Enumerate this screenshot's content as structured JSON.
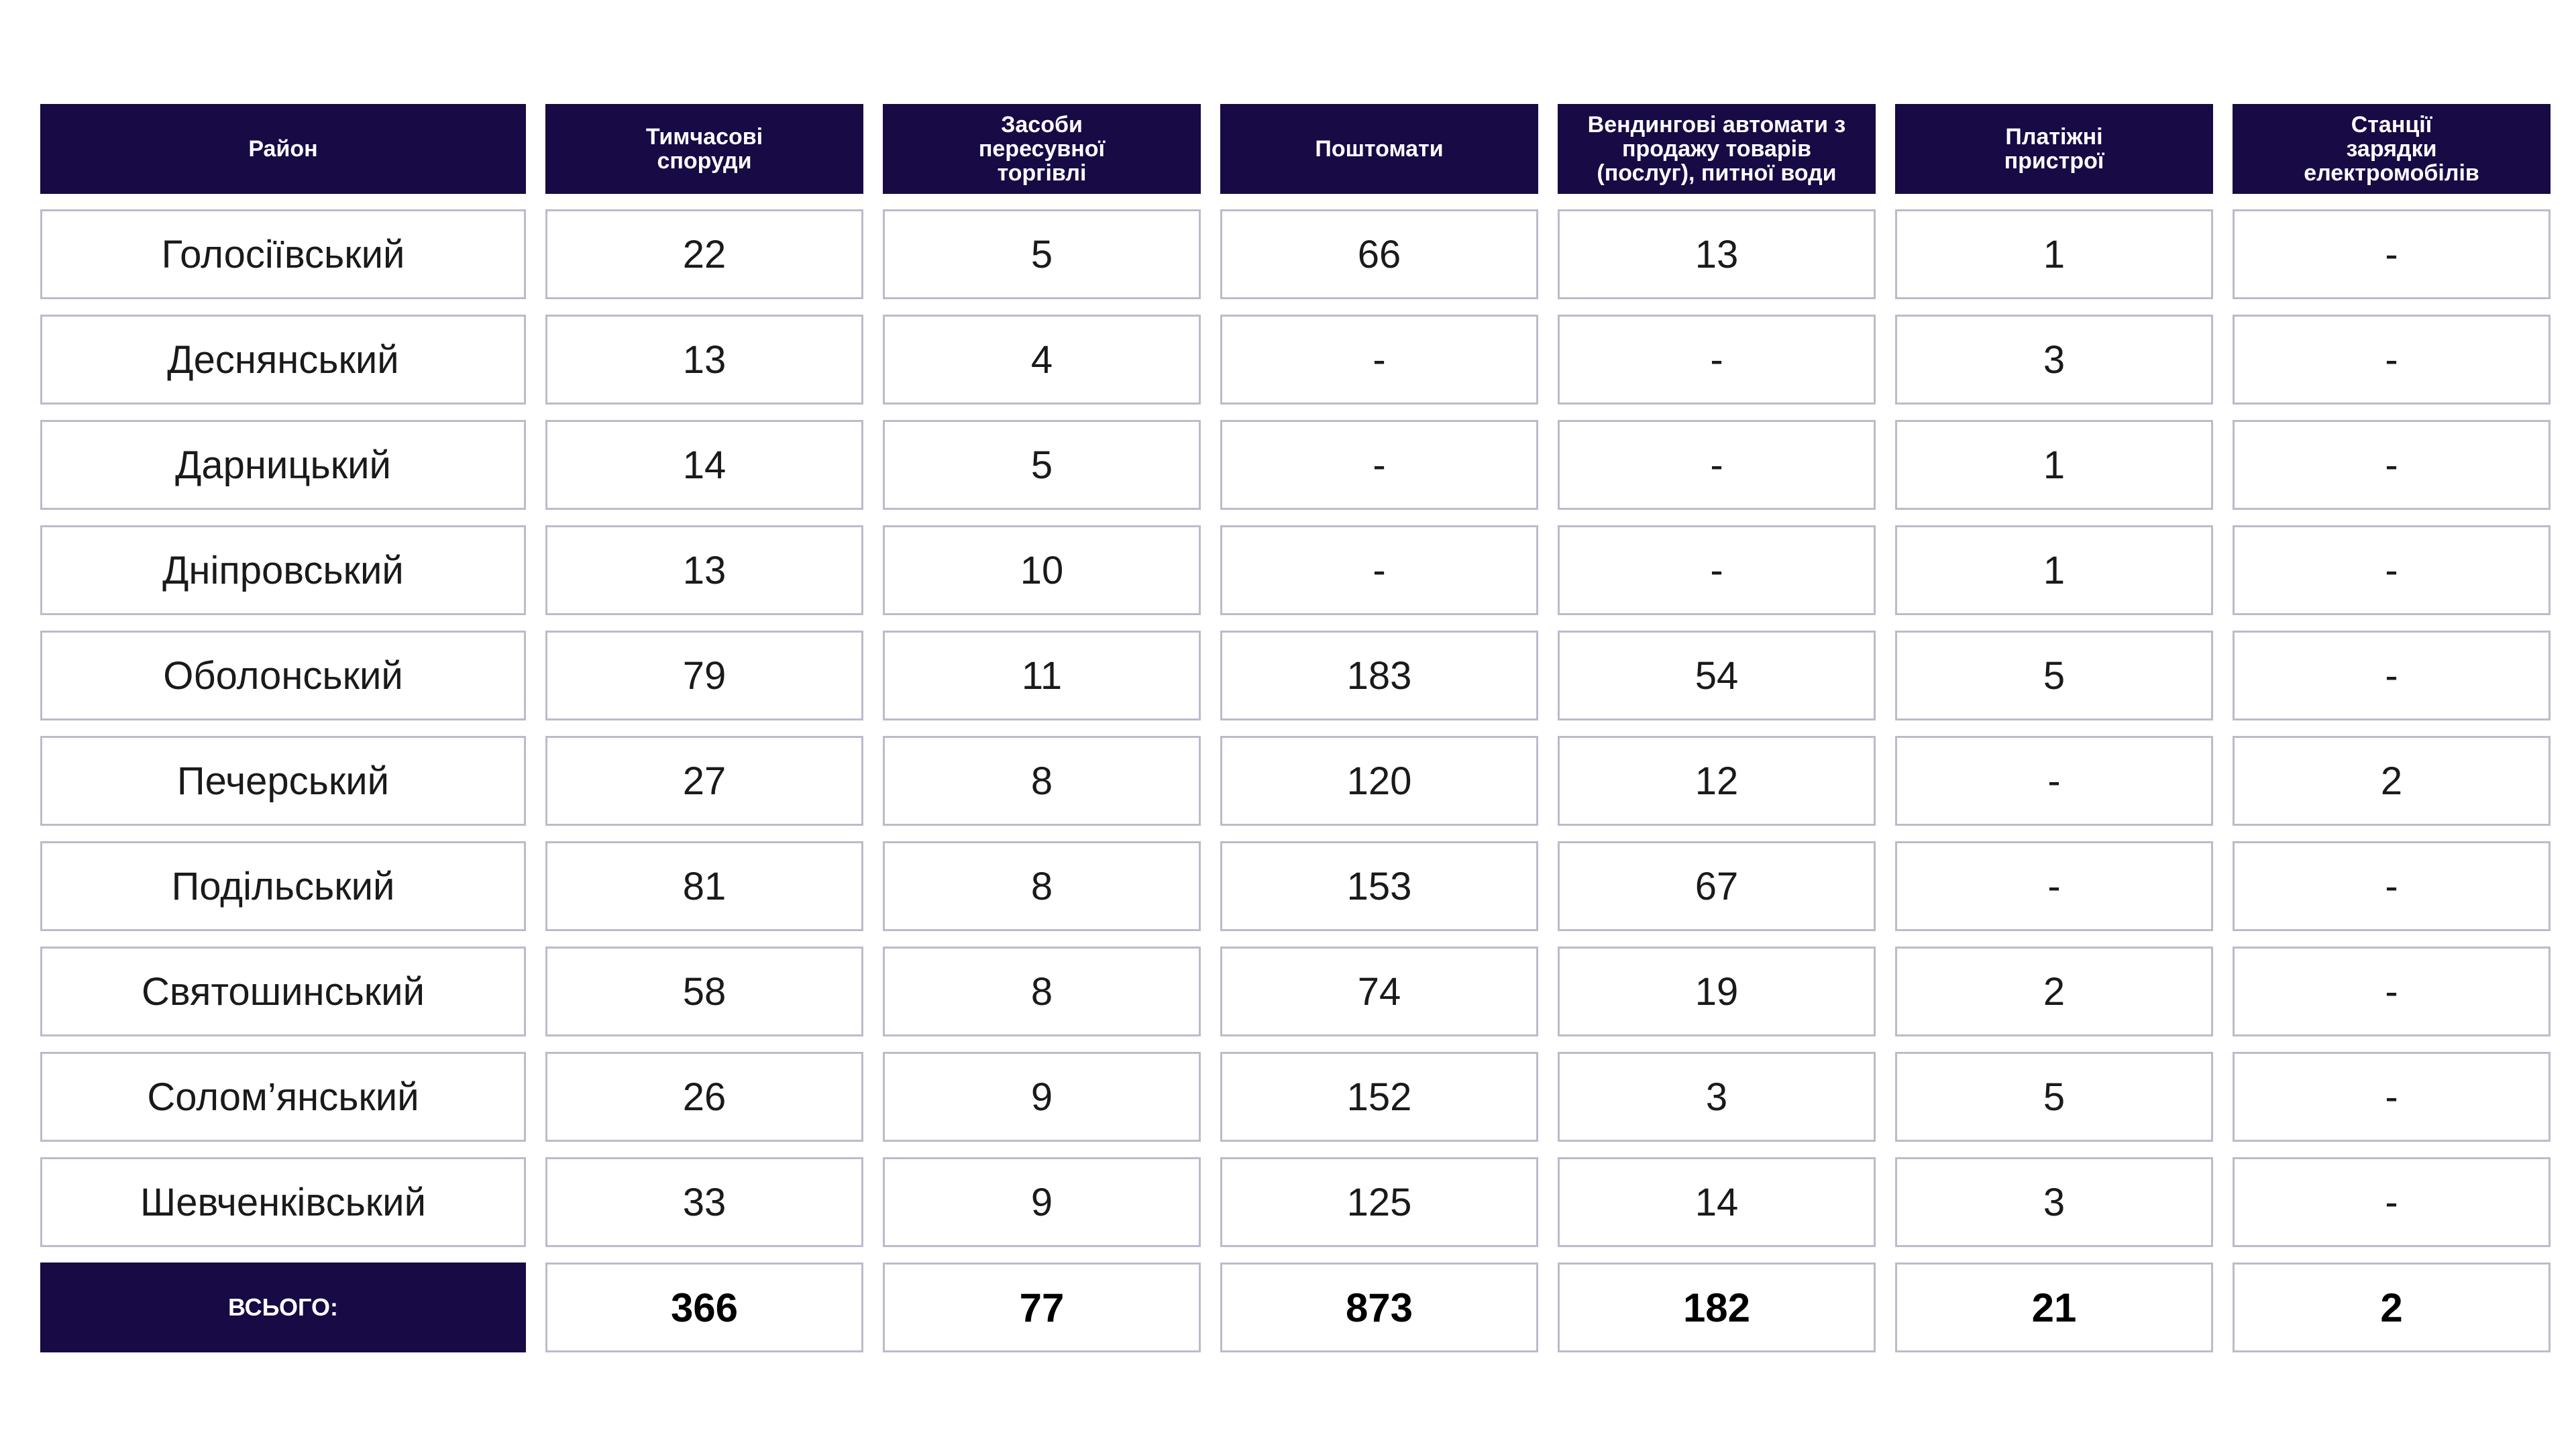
{
  "headers": [
    "Район",
    "Тимчасові\nспоруди",
    "Засоби\nпересувної\nторгівлі",
    "Поштомати",
    "Вендингові автомати з\nпродажу товарів\n(послуг), питної води",
    "Платіжні\nпристрої",
    "Станції\nзарядки\nелектромобілів"
  ],
  "rows": [
    [
      "Голосіївський",
      "22",
      "5",
      "66",
      "13",
      "1",
      "-"
    ],
    [
      "Деснянський",
      "13",
      "4",
      "-",
      "-",
      "3",
      "-"
    ],
    [
      "Дарницький",
      "14",
      "5",
      "-",
      "-",
      "1",
      "-"
    ],
    [
      "Дніпровський",
      "13",
      "10",
      "-",
      "-",
      "1",
      "-"
    ],
    [
      "Оболонський",
      "79",
      "11",
      "183",
      "54",
      "5",
      "-"
    ],
    [
      "Печерський",
      "27",
      "8",
      "120",
      "12",
      "-",
      "2"
    ],
    [
      "Подільський",
      "81",
      "8",
      "153",
      "67",
      "-",
      "-"
    ],
    [
      "Святошинський",
      "58",
      "8",
      "74",
      "19",
      "2",
      "-"
    ],
    [
      "Солом’янський",
      "26",
      "9",
      "152",
      "3",
      "5",
      "-"
    ],
    [
      "Шевченківський",
      "33",
      "9",
      "125",
      "14",
      "3",
      "-"
    ]
  ],
  "total": {
    "label": "ВСЬОГО:",
    "values": [
      "366",
      "77",
      "873",
      "182",
      "21",
      "2"
    ]
  },
  "colors": {
    "header_bg": "#170a45",
    "header_text": "#ffffff",
    "cell_border": "#bcbbcc"
  }
}
